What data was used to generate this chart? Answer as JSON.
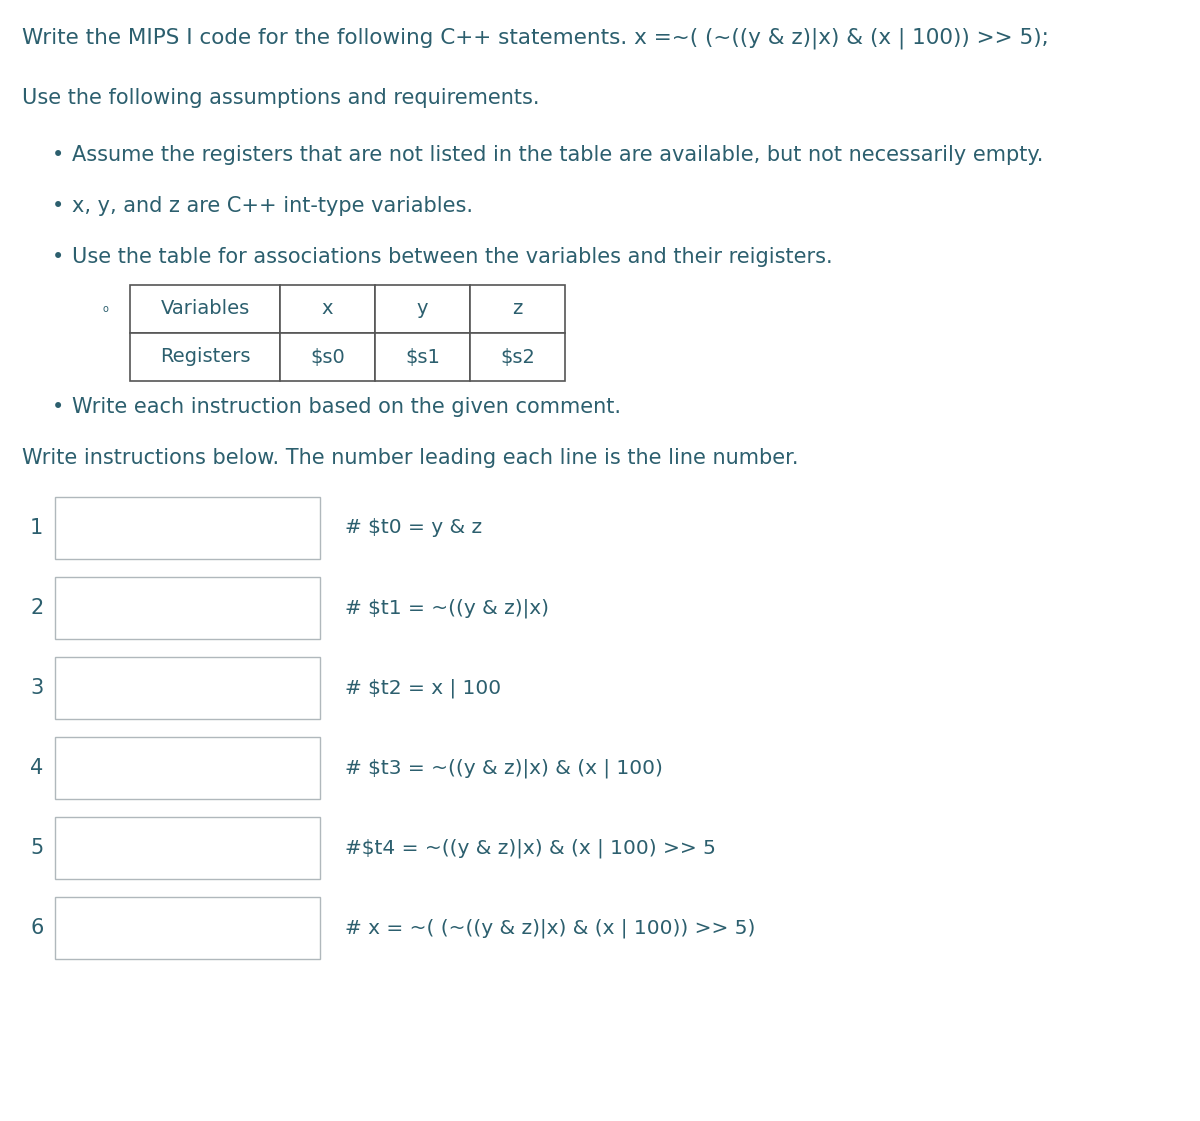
{
  "title_line": "Write the MIPS I code for the following C++ statements. x =~( (~((y & z)|x) & (x | 100)) >> 5);",
  "assumptions_header": "Use the following assumptions and requirements.",
  "bullet_points": [
    "Assume the registers that are not listed in the table are available, but not necessarily empty.",
    "x, y, and z are C++ int-type variables.",
    "Use the table for associations between the variables and their reigisters.",
    "Write each instruction based on the given comment."
  ],
  "table_headers": [
    "Variables",
    "x",
    "y",
    "z"
  ],
  "table_row": [
    "Registers",
    "$s0",
    "$s1",
    "$s2"
  ],
  "write_instr_line": "Write instructions below. The number leading each line is the line number.",
  "lines": [
    {
      "num": "1",
      "comment": "# $t0 = y & z"
    },
    {
      "num": "2",
      "comment": "# $t1 = ~((y & z)|x)"
    },
    {
      "num": "3",
      "comment": "# $t2 = x | 100"
    },
    {
      "num": "4",
      "comment": "# $t3 = ~((y & z)|x) & (x | 100)"
    },
    {
      "num": "5",
      "comment": "#$t4 = ~((y & z)|x) & (x | 100) >> 5"
    },
    {
      "num": "6",
      "comment": "# x = ~( (~((y & z)|x) & (x | 100)) >> 5)"
    }
  ],
  "bg_color": "#ffffff",
  "text_color": "#2c5f6e",
  "box_facecolor": "#ffffff",
  "box_edgecolor": "#b0b8bc",
  "table_border_color": "#555555",
  "font_size_title": 15.5,
  "font_size_body": 15.0,
  "font_size_comment": 14.5
}
